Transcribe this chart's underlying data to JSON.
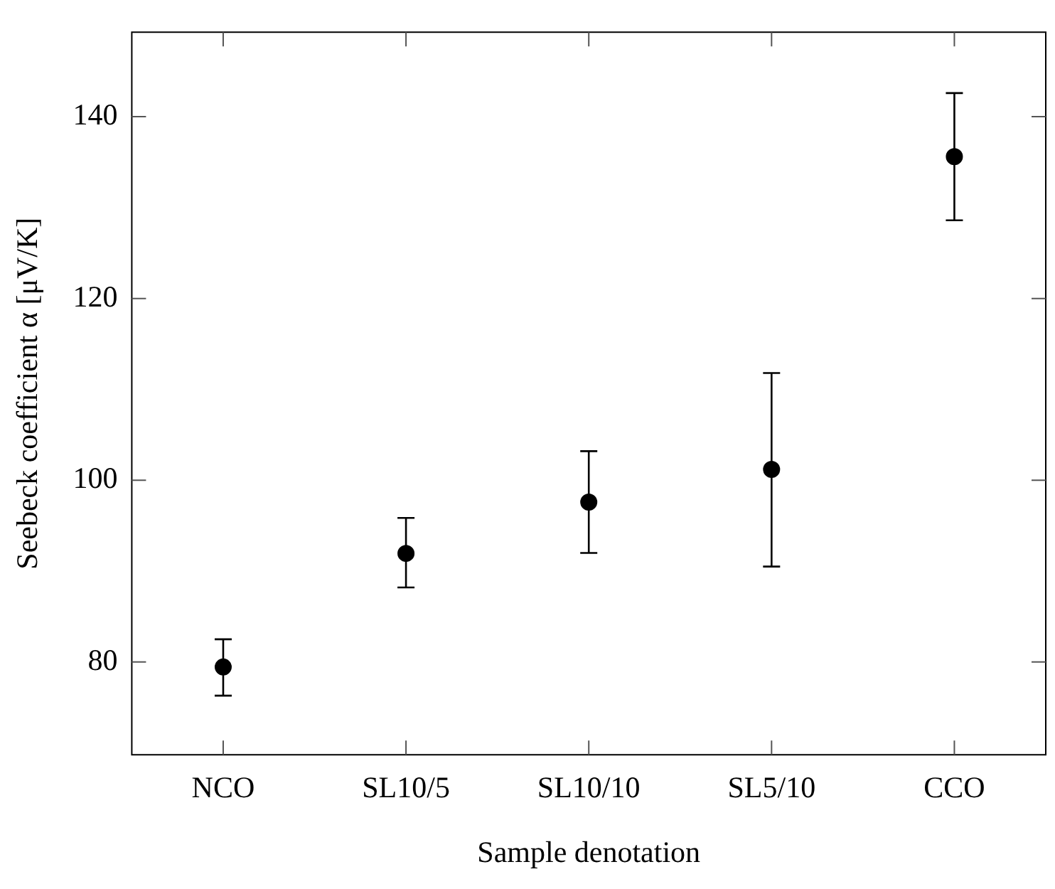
{
  "chart_data": {
    "type": "scatter",
    "xlabel": "Sample denotation",
    "ylabel": "Seebeck coefficient α [μV/K]",
    "categories": [
      "NCO",
      "SL10/5",
      "SL10/10",
      "SL5/10",
      "CCO"
    ],
    "series": [
      {
        "color": "#000000",
        "values": [
          79.45,
          91.95,
          97.6,
          101.2,
          135.6
        ],
        "errors": [
          [
            76.3,
            82.5
          ],
          [
            88.2,
            95.85
          ],
          [
            92.0,
            103.2
          ],
          [
            90.5,
            111.8
          ],
          [
            128.6,
            142.6
          ]
        ]
      }
    ],
    "ylim": [
      69.8,
      149.3
    ],
    "yticks": [
      80,
      100,
      120,
      140
    ],
    "grid": false,
    "legend": false,
    "marker": "circle"
  }
}
